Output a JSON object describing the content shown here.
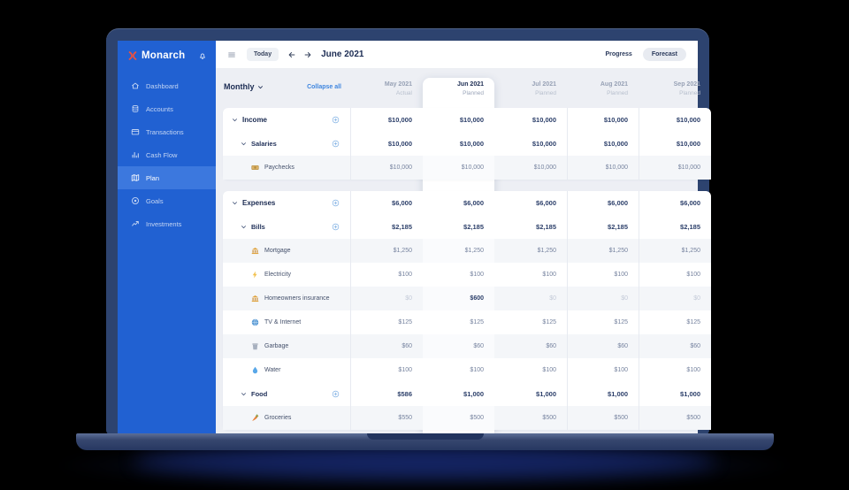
{
  "sidebar": {
    "logo_text": "Monarch",
    "items": [
      {
        "label": "Dashboard",
        "icon": "dashboard",
        "active": false
      },
      {
        "label": "Accounts",
        "icon": "accounts",
        "active": false
      },
      {
        "label": "Transactions",
        "icon": "transactions",
        "active": false
      },
      {
        "label": "Cash Flow",
        "icon": "cashflow",
        "active": false
      },
      {
        "label": "Plan",
        "icon": "plan",
        "active": true
      },
      {
        "label": "Goals",
        "icon": "goals",
        "active": false
      },
      {
        "label": "Investments",
        "icon": "investments",
        "active": false
      }
    ]
  },
  "topbar": {
    "today_label": "Today",
    "title": "June 2021",
    "view_toggle": {
      "options": [
        "Progress",
        "Forecast"
      ],
      "selected": "Forecast"
    }
  },
  "controls": {
    "period_label": "Monthly",
    "collapse_all_label": "Collapse all"
  },
  "table": {
    "columns": [
      {
        "month": "May 2021",
        "sub": "Actual",
        "highlight": false
      },
      {
        "month": "Jun 2021",
        "sub": "Planned",
        "highlight": true
      },
      {
        "month": "Jul 2021",
        "sub": "Planned",
        "highlight": false
      },
      {
        "month": "Aug 2021",
        "sub": "Planned",
        "highlight": false
      },
      {
        "month": "Sep 2021",
        "sub": "Planned",
        "highlight": false
      }
    ],
    "groups": [
      {
        "rows": [
          {
            "label": "Income",
            "type": "section",
            "icon": null,
            "tinted": false,
            "values": [
              "$10,000",
              "$10,000",
              "$10,000",
              "$10,000",
              "$10,000"
            ]
          },
          {
            "label": "Salaries",
            "type": "group",
            "icon": null,
            "tinted": false,
            "values": [
              "$10,000",
              "$10,000",
              "$10,000",
              "$10,000",
              "$10,000"
            ]
          },
          {
            "label": "Paychecks",
            "type": "leaf",
            "icon": "banknote",
            "tinted": true,
            "values": [
              "$10,000",
              "$10,000",
              "$10,000",
              "$10,000",
              "$10,000"
            ]
          }
        ]
      },
      {
        "rows": [
          {
            "label": "Expenses",
            "type": "section",
            "icon": null,
            "tinted": false,
            "values": [
              "$6,000",
              "$6,000",
              "$6,000",
              "$6,000",
              "$6,000"
            ]
          },
          {
            "label": "Bills",
            "type": "group",
            "icon": null,
            "tinted": false,
            "values": [
              "$2,185",
              "$2,185",
              "$2,185",
              "$2,185",
              "$2,185"
            ]
          },
          {
            "label": "Mortgage",
            "type": "leaf",
            "icon": "bank",
            "tinted": true,
            "values": [
              "$1,250",
              "$1,250",
              "$1,250",
              "$1,250",
              "$1,250"
            ]
          },
          {
            "label": "Electricity",
            "type": "leaf",
            "icon": "bolt",
            "tinted": false,
            "values": [
              "$100",
              "$100",
              "$100",
              "$100",
              "$100"
            ]
          },
          {
            "label": "Homeowners insurance",
            "type": "leaf",
            "icon": "bank",
            "tinted": true,
            "values": [
              "$0",
              "$600",
              "$0",
              "$0",
              "$0"
            ],
            "muted": [
              0,
              2,
              3,
              4
            ],
            "strong": [
              1
            ]
          },
          {
            "label": "TV & Internet",
            "type": "leaf",
            "icon": "globe",
            "tinted": false,
            "values": [
              "$125",
              "$125",
              "$125",
              "$125",
              "$125"
            ]
          },
          {
            "label": "Garbage",
            "type": "leaf",
            "icon": "trash",
            "tinted": true,
            "values": [
              "$60",
              "$60",
              "$60",
              "$60",
              "$60"
            ]
          },
          {
            "label": "Water",
            "type": "leaf",
            "icon": "droplet",
            "tinted": false,
            "values": [
              "$100",
              "$100",
              "$100",
              "$100",
              "$100"
            ]
          },
          {
            "label": "Food",
            "type": "group",
            "icon": null,
            "tinted": false,
            "values": [
              "$586",
              "$1,000",
              "$1,000",
              "$1,000",
              "$1,000"
            ]
          },
          {
            "label": "Groceries",
            "type": "leaf",
            "icon": "carrot",
            "tinted": true,
            "values": [
              "$550",
              "$500",
              "$500",
              "$500",
              "$500"
            ]
          }
        ]
      }
    ]
  },
  "colors": {
    "accent_orange": "#f0503c",
    "sidebar_blue": "#2161d2",
    "link_blue": "#3f86df",
    "highlight_column": "#ffffff"
  }
}
